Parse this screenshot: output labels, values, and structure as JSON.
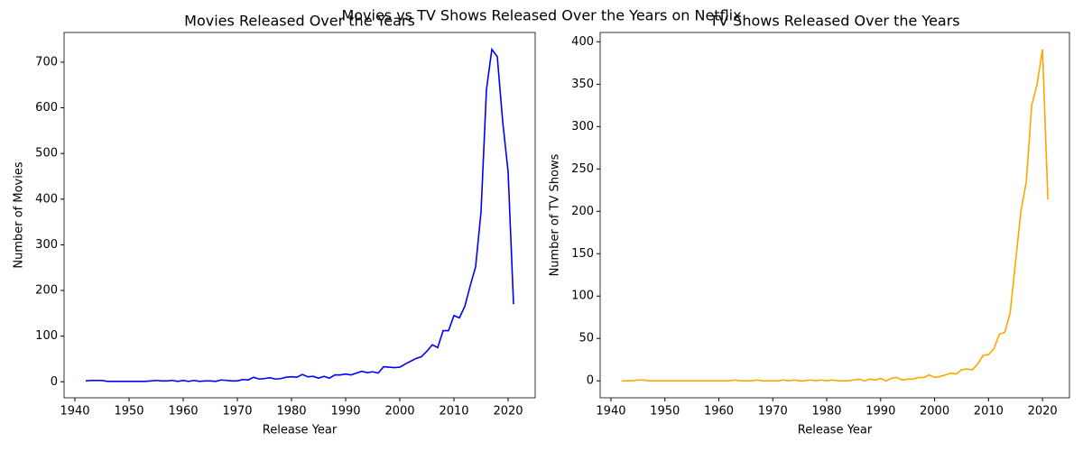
{
  "title": "Movies vs TV Shows Released Over the Years on Netflix",
  "chart_data": [
    {
      "type": "line",
      "title": "Movies Released Over the Years",
      "x_label": "Release Year",
      "y_label": "Number of Movies",
      "x": [
        1942,
        1943,
        1944,
        1945,
        1946,
        1947,
        1948,
        1949,
        1950,
        1951,
        1952,
        1953,
        1954,
        1955,
        1956,
        1957,
        1958,
        1959,
        1960,
        1961,
        1962,
        1963,
        1964,
        1965,
        1966,
        1967,
        1968,
        1969,
        1970,
        1971,
        1972,
        1973,
        1974,
        1975,
        1976,
        1977,
        1978,
        1979,
        1980,
        1981,
        1982,
        1983,
        1984,
        1985,
        1986,
        1987,
        1988,
        1989,
        1990,
        1991,
        1992,
        1993,
        1994,
        1995,
        1996,
        1997,
        1998,
        1999,
        2000,
        2001,
        2002,
        2003,
        2004,
        2005,
        2006,
        2007,
        2008,
        2009,
        2010,
        2011,
        2012,
        2013,
        2014,
        2015,
        2016,
        2017,
        2018,
        2019,
        2020,
        2021
      ],
      "series": [
        {
          "name": "Movies",
          "color": "#0000ff",
          "values": [
            2,
            3,
            3,
            3,
            1,
            1,
            1,
            1,
            1,
            1,
            1,
            1,
            2,
            3,
            2,
            2,
            3,
            1,
            3,
            1,
            3,
            1,
            2,
            2,
            1,
            4,
            3,
            2,
            2,
            5,
            4,
            10,
            6,
            7,
            9,
            6,
            7,
            10,
            11,
            10,
            16,
            11,
            12,
            8,
            12,
            8,
            15,
            15,
            17,
            15,
            19,
            23,
            20,
            22,
            19,
            33,
            32,
            31,
            32,
            39,
            45,
            51,
            55,
            67,
            81,
            75,
            112,
            112,
            145,
            140,
            165,
            210,
            252,
            372,
            640,
            728,
            712,
            570,
            460,
            170
          ]
        }
      ],
      "xlim": [
        1938,
        2025
      ],
      "xticks": [
        1940,
        1950,
        1960,
        1970,
        1980,
        1990,
        2000,
        2010,
        2020
      ],
      "ylim": [
        -35,
        765
      ],
      "yticks": [
        0,
        100,
        200,
        300,
        400,
        500,
        600,
        700
      ]
    },
    {
      "type": "line",
      "title": "TV Shows Released Over the Years",
      "x_label": "Release Year",
      "y_label": "Number of TV Shows",
      "x": [
        1942,
        1943,
        1944,
        1945,
        1946,
        1947,
        1948,
        1949,
        1950,
        1951,
        1952,
        1953,
        1954,
        1955,
        1956,
        1957,
        1958,
        1959,
        1960,
        1961,
        1962,
        1963,
        1964,
        1965,
        1966,
        1967,
        1968,
        1969,
        1970,
        1971,
        1972,
        1973,
        1974,
        1975,
        1976,
        1977,
        1978,
        1979,
        1980,
        1981,
        1982,
        1983,
        1984,
        1985,
        1986,
        1987,
        1988,
        1989,
        1990,
        1991,
        1992,
        1993,
        1994,
        1995,
        1996,
        1997,
        1998,
        1999,
        2000,
        2001,
        2002,
        2003,
        2004,
        2005,
        2006,
        2007,
        2008,
        2009,
        2010,
        2011,
        2012,
        2013,
        2014,
        2015,
        2016,
        2017,
        2018,
        2019,
        2020,
        2021
      ],
      "series": [
        {
          "name": "TV Shows",
          "color": "#ffa500",
          "values": [
            0,
            0,
            0,
            1,
            1,
            0,
            0,
            0,
            0,
            0,
            0,
            0,
            0,
            0,
            0,
            0,
            0,
            0,
            0,
            0,
            0,
            1,
            0,
            0,
            0,
            1,
            0,
            0,
            0,
            0,
            1,
            0,
            1,
            0,
            0,
            1,
            0,
            1,
            0,
            1,
            0,
            0,
            0,
            1,
            2,
            0,
            2,
            1,
            3,
            0,
            3,
            4,
            1,
            2,
            2,
            4,
            4,
            7,
            4,
            5,
            7,
            9,
            8,
            13,
            14,
            13,
            20,
            30,
            31,
            38,
            55,
            57,
            80,
            140,
            200,
            235,
            325,
            350,
            391,
            214
          ]
        }
      ],
      "xlim": [
        1938,
        2025
      ],
      "xticks": [
        1940,
        1950,
        1960,
        1970,
        1980,
        1990,
        2000,
        2010,
        2020
      ],
      "ylim": [
        -20,
        411
      ],
      "yticks": [
        0,
        50,
        100,
        150,
        200,
        250,
        300,
        350,
        400
      ]
    }
  ]
}
